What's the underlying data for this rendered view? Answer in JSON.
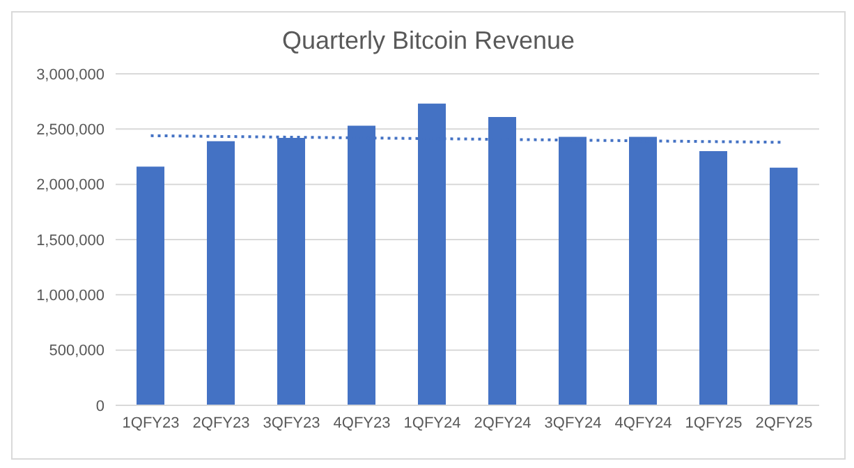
{
  "chart_data": {
    "type": "bar",
    "title": "Quarterly Bitcoin Revenue",
    "categories": [
      "1QFY23",
      "2QFY23",
      "3QFY23",
      "4QFY23",
      "1QFY24",
      "2QFY24",
      "3QFY24",
      "4QFY24",
      "1QFY25",
      "2QFY25"
    ],
    "series": [
      {
        "color": "#4472c4",
        "values": [
          2160000,
          2390000,
          2420000,
          2530000,
          2730000,
          2610000,
          2430000,
          2430000,
          2300000,
          2150000
        ]
      },
      {
        "type": "line",
        "color": "#4472c4",
        "line_style": "dotted",
        "marker": "none",
        "x": [
          "1QFY23",
          "2QFY25"
        ],
        "values": [
          2440000,
          2380000
        ]
      }
    ],
    "ylim": [
      0,
      3000000
    ],
    "yticks": [
      0,
      {
        "value": 500000,
        "label": "500,000"
      },
      {
        "value": 1000000,
        "label": "1,000,000"
      },
      {
        "value": 1500000,
        "label": "1,500,000"
      },
      {
        "value": 2000000,
        "label": "2,000,000"
      },
      {
        "value": 2500000,
        "label": "2,500,000"
      },
      {
        "value": 3000000,
        "label": "3,000,000"
      }
    ],
    "grid": "y",
    "legend": false
  }
}
